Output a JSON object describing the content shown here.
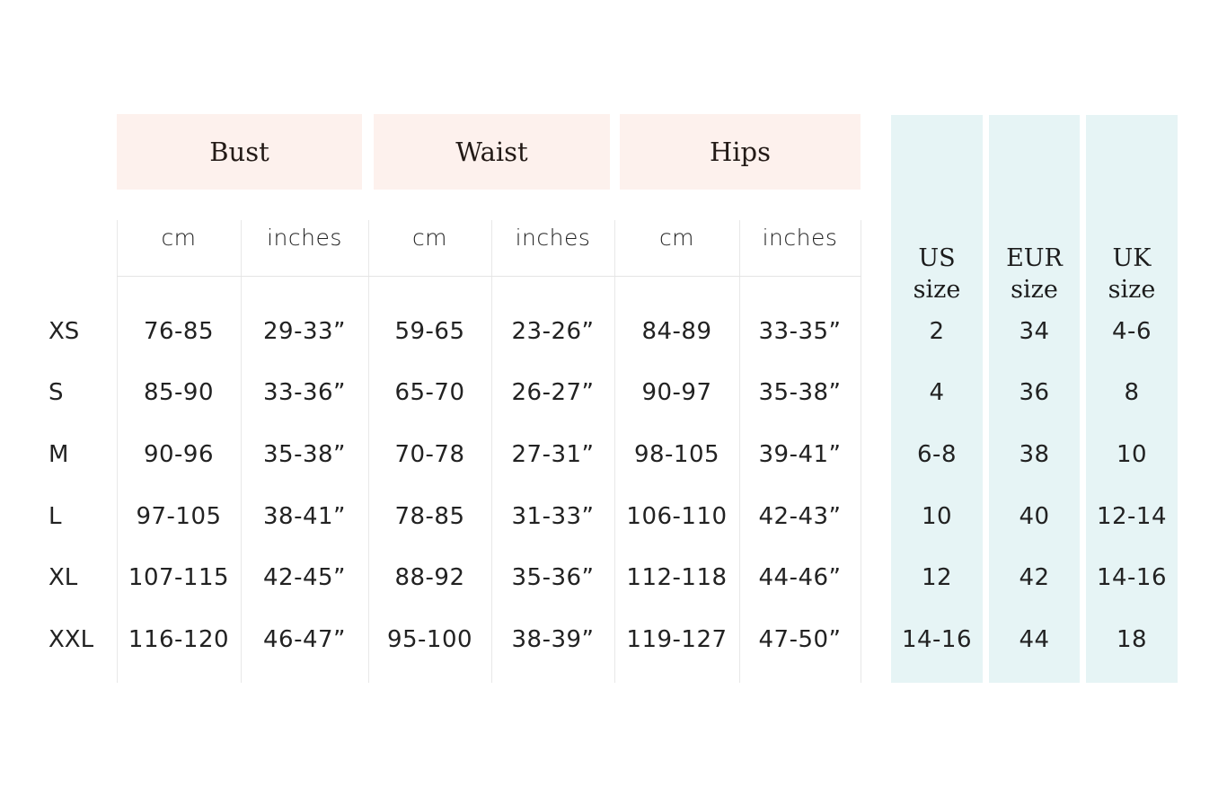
{
  "colors": {
    "measure_header_bg": "#fdf1ed",
    "size_column_bg": "#e6f4f5"
  },
  "groups": [
    {
      "label": "Bust",
      "units": [
        "cm",
        "inches"
      ]
    },
    {
      "label": "Waist",
      "units": [
        "cm",
        "inches"
      ]
    },
    {
      "label": "Hips",
      "units": [
        "cm",
        "inches"
      ]
    }
  ],
  "size_systems": [
    {
      "label": "US",
      "sub": "size"
    },
    {
      "label": "EUR",
      "sub": "size"
    },
    {
      "label": "UK",
      "sub": "size"
    }
  ],
  "rows": [
    {
      "size": "XS",
      "values": [
        "76-85",
        "29-33”",
        "59-65",
        "23-26”",
        "84-89",
        "33-35”",
        "2",
        "34",
        "4-6"
      ]
    },
    {
      "size": "S",
      "values": [
        "85-90",
        "33-36”",
        "65-70",
        "26-27”",
        "90-97",
        "35-38”",
        "4",
        "36",
        "8"
      ]
    },
    {
      "size": "M",
      "values": [
        "90-96",
        "35-38”",
        "70-78",
        "27-31”",
        "98-105",
        "39-41”",
        "6-8",
        "38",
        "10"
      ]
    },
    {
      "size": "L",
      "values": [
        "97-105",
        "38-41”",
        "78-85",
        "31-33”",
        "106-110",
        "42-43”",
        "10",
        "40",
        "12-14"
      ]
    },
    {
      "size": "XL",
      "values": [
        "107-115",
        "42-45”",
        "88-92",
        "35-36”",
        "112-118",
        "44-46”",
        "12",
        "42",
        "14-16"
      ]
    },
    {
      "size": "XXL",
      "values": [
        "116-120",
        "46-47”",
        "95-100",
        "38-39”",
        "119-127",
        "47-50”",
        "14-16",
        "44",
        "18"
      ]
    }
  ]
}
